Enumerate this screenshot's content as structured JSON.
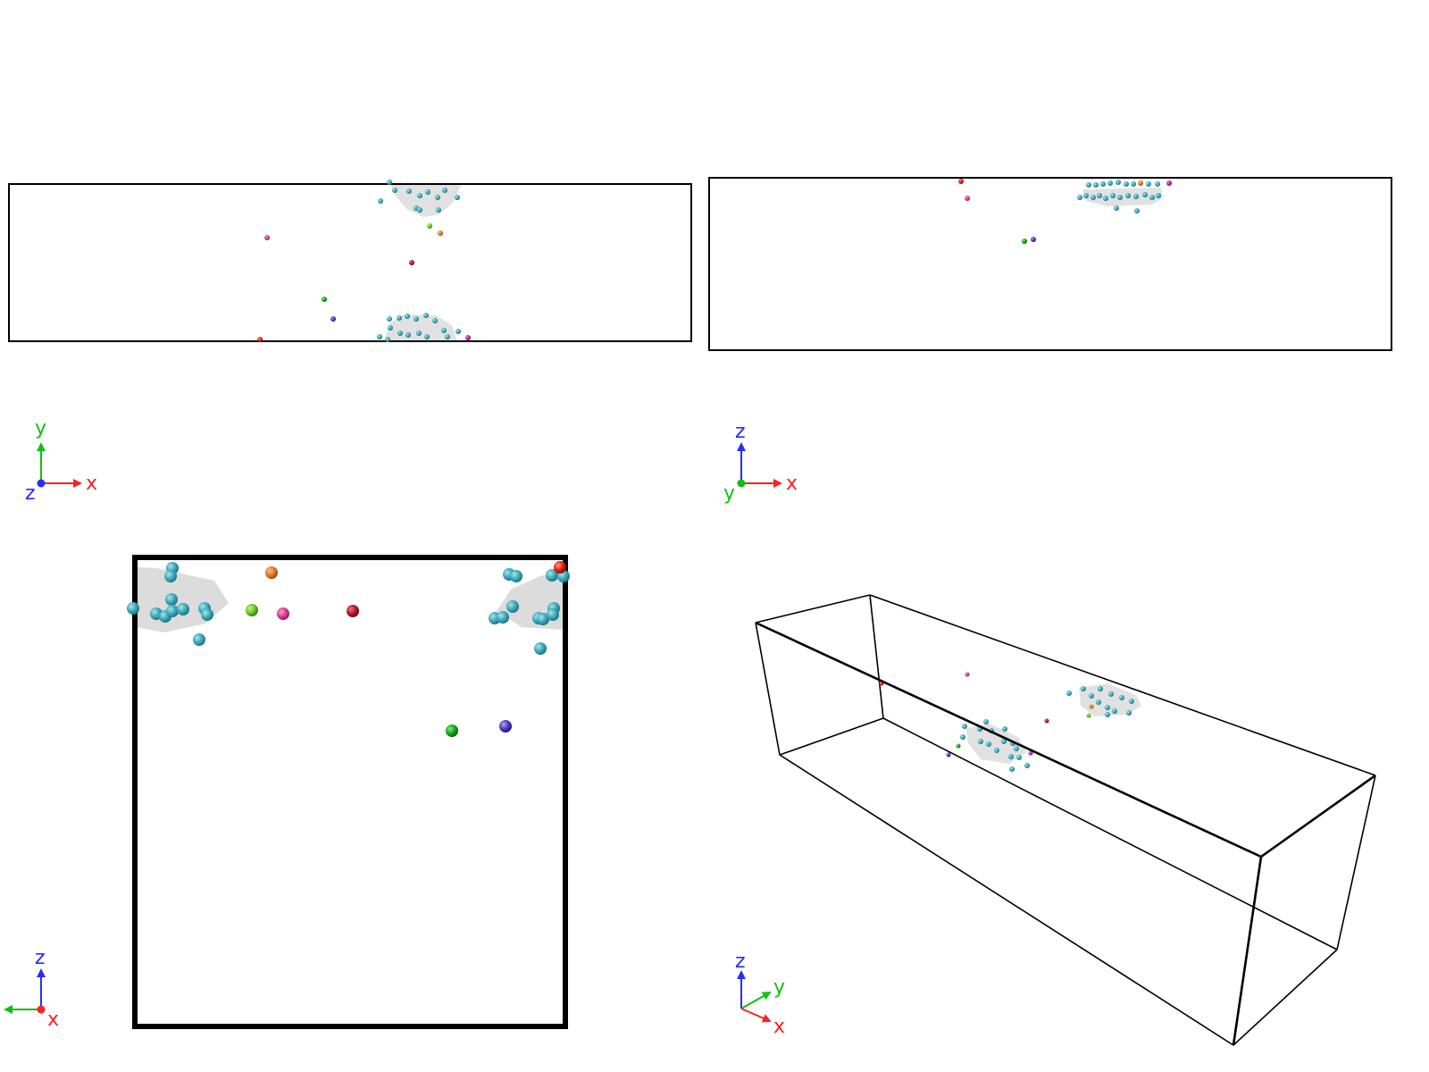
{
  "colors": {
    "x_axis": "#ff2020",
    "y_axis": "#10c010",
    "z_axis": "#2a2aff",
    "box_line": "#000000",
    "surface": "#d9d9d9",
    "atom_cyan": "#3aa8b8",
    "atom_orange": "#e07a2a",
    "atom_lime": "#66cc22",
    "atom_pink": "#e03a8a",
    "atom_crimson": "#b01828",
    "atom_green": "#14a814",
    "atom_blue": "#4a38c8",
    "atom_red": "#e02010",
    "atom_magenta": "#c0209a"
  },
  "panels": [
    {
      "id": "view-xy",
      "projection": "x-y",
      "axis_labels": {
        "horizontal": "x",
        "vertical": "y",
        "depth": "z"
      }
    },
    {
      "id": "view-xz",
      "projection": "x-z",
      "axis_labels": {
        "horizontal": "x",
        "vertical": "z",
        "depth": "y"
      }
    },
    {
      "id": "view-yz",
      "projection": "y-z (looking along x)",
      "axis_labels": {
        "horizontal": "",
        "vertical": "z",
        "depth": "x"
      }
    },
    {
      "id": "view-perspective",
      "projection": "perspective",
      "axis_labels": {
        "x": "x",
        "y": "y",
        "z": "z"
      }
    }
  ]
}
